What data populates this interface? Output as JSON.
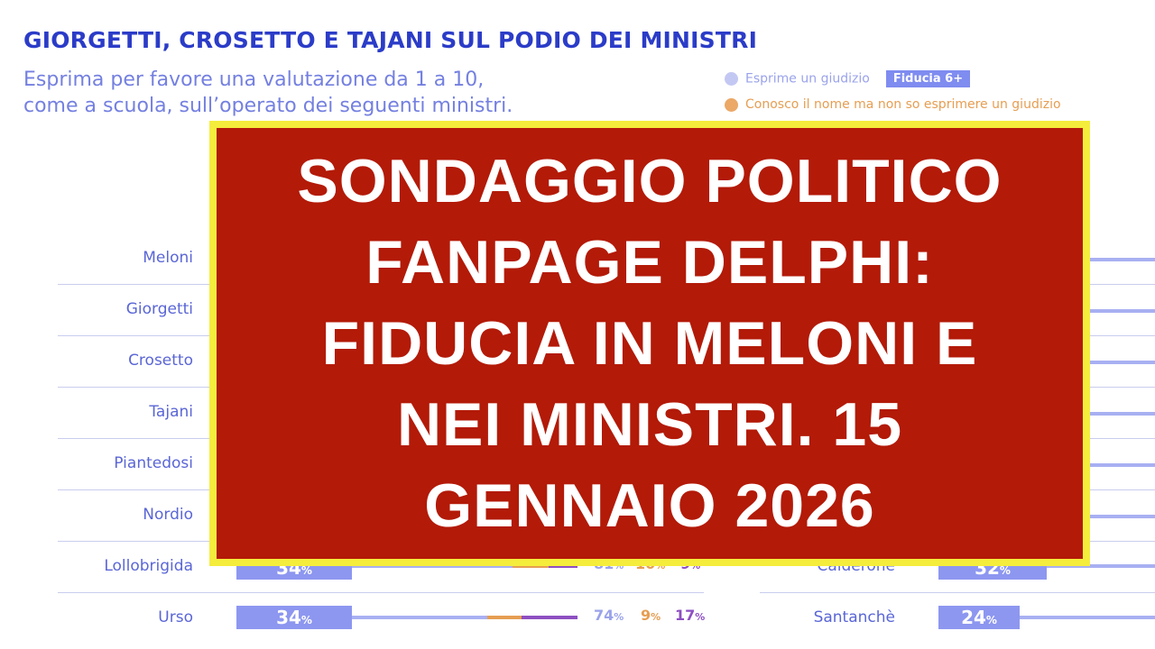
{
  "chart_data": {
    "type": "bar",
    "title": "GIORGETTI, CROSETTO E TAJANI SUL PODIO DEI MINISTRI",
    "subtitle_line1": "Esprima per favore una valutazione da 1 a 10,",
    "subtitle_line2": "come a scuola, sull’operato dei seguenti ministri.",
    "legend": {
      "item1": "Esprime un giudizio",
      "badge": "Fiducia 6+",
      "item2": "Conosco il nome ma non so esprimere un giudizio"
    },
    "left_categories": [
      "Meloni",
      "Giorgetti",
      "Crosetto",
      "Tajani",
      "Piantedosi",
      "Nordio",
      "Lollobrigida",
      "Urso"
    ],
    "visible_rows": [
      {
        "name": "Lollobrigida",
        "fiducia": 34,
        "esprime": 81,
        "conosco": 10,
        "other": 9
      },
      {
        "name": "Urso",
        "fiducia": 34,
        "esprime": 74,
        "conosco": 9,
        "other": 17
      }
    ],
    "right_visible_rows": [
      {
        "name": "Calderone",
        "fiducia": 32
      },
      {
        "name": "Santanchè",
        "fiducia": 24
      }
    ],
    "percent_sign": "%",
    "colors": {
      "title": "#2b3cc8",
      "bar": "#8d97f0",
      "orange": "#e69e52",
      "purple": "#8e4fc2",
      "overlay": "#b31a08",
      "overlay_border": "#f4ed3c"
    }
  },
  "overlay": {
    "text": "SONDAGGIO POLITICO\nFANPAGE DELPHI:\nFIDUCIA IN MELONI E\nNEI MINISTRI. 15\nGENNAIO 2026"
  }
}
